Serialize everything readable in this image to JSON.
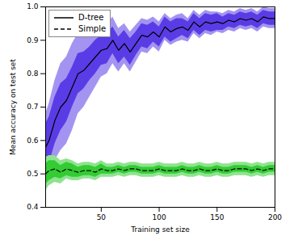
{
  "chart_data": {
    "type": "line",
    "xlabel": "Training set size",
    "ylabel": "Mean accuracy on test set",
    "x": [
      2,
      5,
      10,
      15,
      20,
      25,
      30,
      35,
      40,
      45,
      50,
      55,
      60,
      65,
      70,
      75,
      80,
      85,
      90,
      95,
      100,
      105,
      110,
      115,
      120,
      125,
      130,
      135,
      140,
      145,
      150,
      155,
      160,
      165,
      170,
      175,
      180,
      185,
      190,
      195,
      200
    ],
    "xlim": [
      2,
      200
    ],
    "xticks": [
      50,
      100,
      150,
      200
    ],
    "ylim": [
      0.4,
      1.0
    ],
    "yticks": [
      0.4,
      0.5,
      0.6,
      0.7,
      0.8,
      0.9,
      {
        "value": 1.0,
        "label": "1.0"
      }
    ],
    "legend": "upper left",
    "series": [
      {
        "name": "D-tree",
        "color": "#5a3ce6",
        "line_style": "solid",
        "values": [
          0.58,
          0.6,
          0.66,
          0.7,
          0.72,
          0.76,
          0.8,
          0.81,
          0.83,
          0.85,
          0.87,
          0.875,
          0.9,
          0.87,
          0.89,
          0.865,
          0.89,
          0.915,
          0.91,
          0.925,
          0.91,
          0.94,
          0.925,
          0.935,
          0.94,
          0.93,
          0.955,
          0.94,
          0.955,
          0.95,
          0.955,
          0.95,
          0.96,
          0.955,
          0.965,
          0.96,
          0.965,
          0.955,
          0.97,
          0.965,
          0.965
        ],
        "inner_low": [
          0.51,
          0.53,
          0.59,
          0.63,
          0.655,
          0.7,
          0.74,
          0.755,
          0.78,
          0.8,
          0.825,
          0.83,
          0.86,
          0.83,
          0.85,
          0.825,
          0.855,
          0.88,
          0.875,
          0.895,
          0.88,
          0.91,
          0.895,
          0.905,
          0.915,
          0.905,
          0.93,
          0.915,
          0.93,
          0.925,
          0.93,
          0.93,
          0.94,
          0.935,
          0.945,
          0.94,
          0.945,
          0.935,
          0.95,
          0.945,
          0.945
        ],
        "inner_high": [
          0.65,
          0.67,
          0.73,
          0.77,
          0.785,
          0.82,
          0.86,
          0.865,
          0.88,
          0.9,
          0.915,
          0.92,
          0.94,
          0.91,
          0.93,
          0.905,
          0.925,
          0.95,
          0.945,
          0.955,
          0.94,
          0.97,
          0.955,
          0.965,
          0.965,
          0.955,
          0.98,
          0.965,
          0.98,
          0.975,
          0.98,
          0.97,
          0.98,
          0.975,
          0.985,
          0.98,
          0.985,
          0.975,
          0.99,
          0.985,
          0.985
        ],
        "outer_low": [
          0.48,
          0.49,
          0.54,
          0.57,
          0.59,
          0.63,
          0.68,
          0.7,
          0.73,
          0.76,
          0.79,
          0.8,
          0.83,
          0.805,
          0.83,
          0.805,
          0.835,
          0.865,
          0.86,
          0.88,
          0.865,
          0.9,
          0.885,
          0.895,
          0.9,
          0.895,
          0.92,
          0.905,
          0.92,
          0.915,
          0.925,
          0.92,
          0.93,
          0.925,
          0.935,
          0.93,
          0.935,
          0.925,
          0.94,
          0.935,
          0.935
        ],
        "outer_high": [
          0.68,
          0.71,
          0.78,
          0.83,
          0.85,
          0.89,
          0.92,
          0.92,
          0.93,
          0.94,
          0.95,
          0.95,
          0.97,
          0.935,
          0.95,
          0.925,
          0.945,
          0.965,
          0.96,
          0.97,
          0.955,
          0.98,
          0.965,
          0.975,
          0.98,
          0.965,
          0.99,
          0.975,
          0.99,
          0.985,
          0.985,
          0.98,
          0.99,
          0.985,
          0.995,
          0.99,
          0.995,
          0.985,
          1.0,
          0.995,
          0.995
        ]
      },
      {
        "name": "Simple",
        "color": "#33cc33",
        "line_style": "dashed",
        "values": [
          0.5,
          0.51,
          0.515,
          0.505,
          0.515,
          0.51,
          0.505,
          0.51,
          0.51,
          0.505,
          0.515,
          0.51,
          0.51,
          0.515,
          0.51,
          0.515,
          0.515,
          0.51,
          0.51,
          0.51,
          0.515,
          0.51,
          0.51,
          0.51,
          0.515,
          0.51,
          0.51,
          0.515,
          0.51,
          0.51,
          0.515,
          0.51,
          0.51,
          0.515,
          0.515,
          0.515,
          0.51,
          0.515,
          0.51,
          0.515,
          0.515
        ],
        "inner_low": [
          0.47,
          0.48,
          0.49,
          0.485,
          0.495,
          0.49,
          0.49,
          0.495,
          0.495,
          0.49,
          0.5,
          0.5,
          0.5,
          0.505,
          0.5,
          0.505,
          0.505,
          0.5,
          0.5,
          0.5,
          0.505,
          0.5,
          0.5,
          0.5,
          0.505,
          0.5,
          0.5,
          0.505,
          0.5,
          0.5,
          0.505,
          0.5,
          0.5,
          0.505,
          0.505,
          0.505,
          0.5,
          0.505,
          0.5,
          0.505,
          0.505
        ],
        "inner_high": [
          0.53,
          0.54,
          0.54,
          0.525,
          0.535,
          0.53,
          0.52,
          0.525,
          0.525,
          0.52,
          0.53,
          0.52,
          0.52,
          0.525,
          0.52,
          0.525,
          0.525,
          0.52,
          0.52,
          0.52,
          0.525,
          0.52,
          0.52,
          0.52,
          0.525,
          0.52,
          0.52,
          0.525,
          0.52,
          0.52,
          0.525,
          0.52,
          0.52,
          0.525,
          0.525,
          0.525,
          0.52,
          0.525,
          0.52,
          0.525,
          0.525
        ],
        "outer_low": [
          0.45,
          0.465,
          0.475,
          0.47,
          0.485,
          0.48,
          0.48,
          0.485,
          0.485,
          0.48,
          0.49,
          0.49,
          0.49,
          0.495,
          0.49,
          0.495,
          0.495,
          0.49,
          0.49,
          0.49,
          0.495,
          0.49,
          0.49,
          0.49,
          0.495,
          0.49,
          0.49,
          0.495,
          0.49,
          0.49,
          0.495,
          0.49,
          0.49,
          0.495,
          0.495,
          0.495,
          0.49,
          0.495,
          0.49,
          0.495,
          0.495
        ],
        "outer_high": [
          0.55,
          0.555,
          0.555,
          0.54,
          0.545,
          0.54,
          0.53,
          0.535,
          0.535,
          0.53,
          0.54,
          0.53,
          0.53,
          0.535,
          0.53,
          0.535,
          0.535,
          0.53,
          0.53,
          0.53,
          0.535,
          0.53,
          0.53,
          0.53,
          0.535,
          0.53,
          0.53,
          0.535,
          0.53,
          0.53,
          0.535,
          0.53,
          0.53,
          0.535,
          0.535,
          0.535,
          0.53,
          0.535,
          0.53,
          0.535,
          0.535
        ]
      }
    ]
  }
}
